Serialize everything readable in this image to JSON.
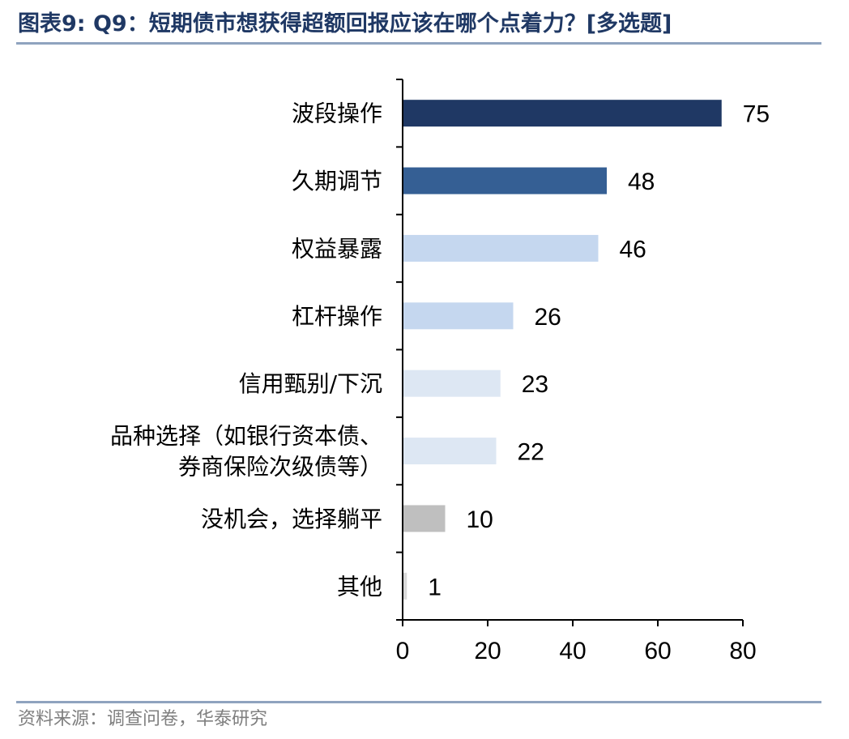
{
  "header": {
    "title": "图表9:   Q9：短期债市想获得超额回报应该在哪个点着力？[多选题]"
  },
  "footer": {
    "source": "资料来源：调查问卷，华泰研究"
  },
  "chart_data": {
    "type": "bar",
    "orientation": "horizontal",
    "categories": [
      "波段操作",
      "久期调节",
      "权益暴露",
      "杠杆操作",
      "信用甄别/下沉",
      [
        "品种选择（如银行资本债、",
        "券商保险次级债等）"
      ],
      "没机会，选择躺平",
      "其他"
    ],
    "values": [
      75,
      48,
      46,
      26,
      23,
      22,
      10,
      1
    ],
    "colors": [
      "#1f3864",
      "#355f94",
      "#c5d7ef",
      "#c5d7ef",
      "#dde7f3",
      "#dde7f3",
      "#bfbfbf",
      "#d9d9d9"
    ],
    "xlim": [
      0,
      80
    ],
    "xticks": [
      0,
      20,
      40,
      60,
      80
    ],
    "grid": false,
    "data_labels": true,
    "legend": "none",
    "axis_color": "#000000"
  }
}
